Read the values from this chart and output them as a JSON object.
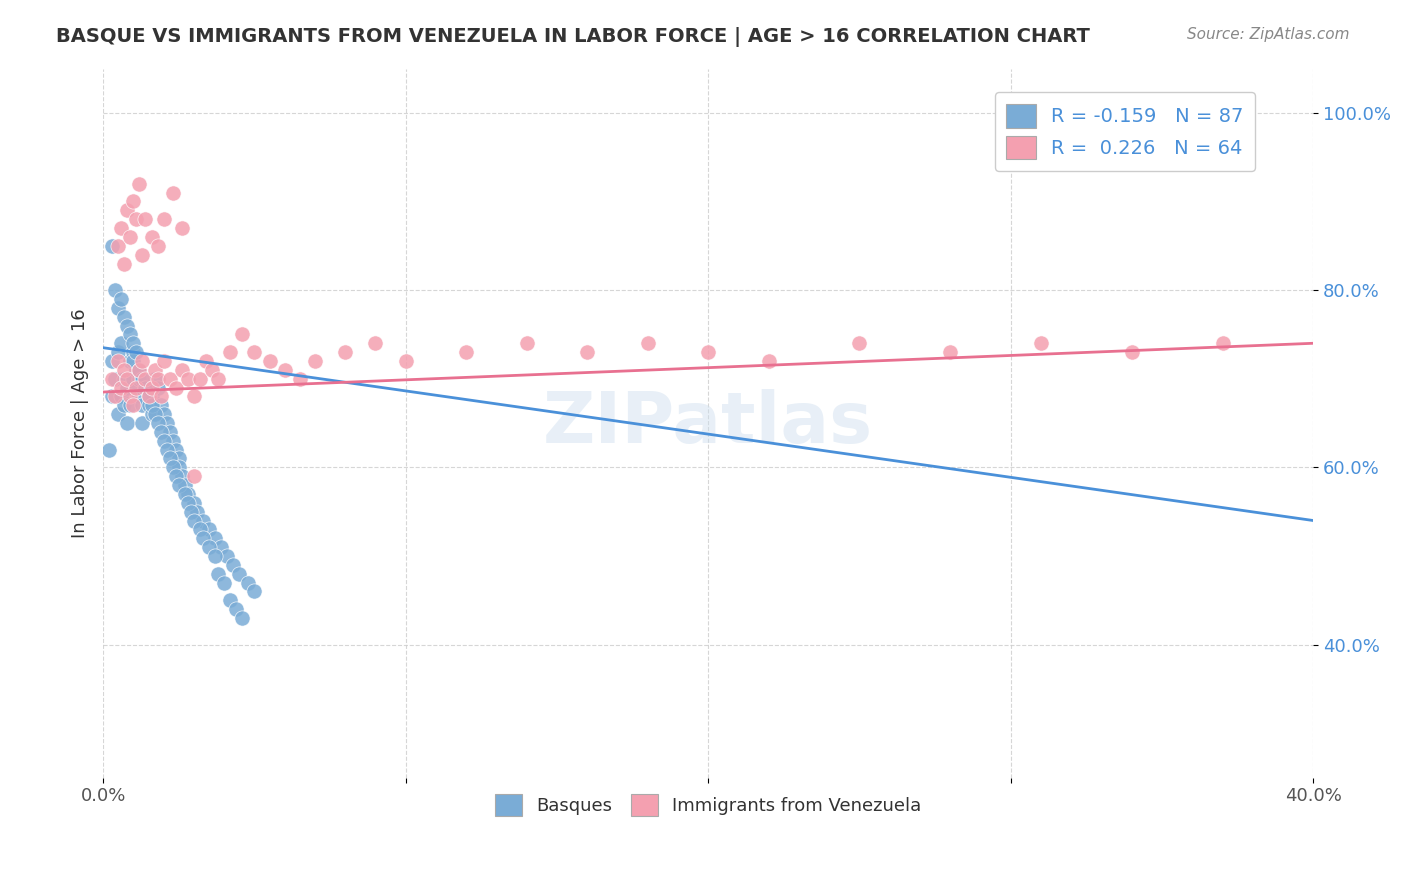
{
  "title": "BASQUE VS IMMIGRANTS FROM VENEZUELA IN LABOR FORCE | AGE > 16 CORRELATION CHART",
  "source": "Source: ZipAtlas.com",
  "ylabel": "In Labor Force | Age > 16",
  "xlim": [
    0.0,
    0.4
  ],
  "ylim": [
    0.25,
    1.05
  ],
  "x_ticks": [
    0.0,
    0.1,
    0.2,
    0.3,
    0.4
  ],
  "x_tick_labels": [
    "0.0%",
    "",
    "",
    "",
    "40.0%"
  ],
  "y_ticks": [
    0.4,
    0.6,
    0.8,
    1.0
  ],
  "y_tick_labels": [
    "40.0%",
    "60.0%",
    "80.0%",
    "100.0%"
  ],
  "legend1_label": "R = -0.159   N = 87",
  "legend2_label": "R =  0.226   N = 64",
  "blue_color": "#7aacd6",
  "pink_color": "#f4a0b0",
  "blue_line_color": "#4a90d9",
  "pink_line_color": "#e87090",
  "watermark": "ZIPatlas",
  "legend_bottom_label1": "Basques",
  "legend_bottom_label2": "Immigrants from Venezuela",
  "basque_x": [
    0.002,
    0.003,
    0.003,
    0.004,
    0.005,
    0.005,
    0.006,
    0.006,
    0.007,
    0.007,
    0.008,
    0.008,
    0.009,
    0.009,
    0.01,
    0.01,
    0.011,
    0.011,
    0.012,
    0.012,
    0.013,
    0.013,
    0.014,
    0.015,
    0.016,
    0.016,
    0.017,
    0.018,
    0.019,
    0.02,
    0.021,
    0.022,
    0.023,
    0.024,
    0.025,
    0.025,
    0.026,
    0.027,
    0.028,
    0.03,
    0.031,
    0.033,
    0.035,
    0.037,
    0.039,
    0.041,
    0.043,
    0.045,
    0.048,
    0.05,
    0.003,
    0.004,
    0.005,
    0.006,
    0.007,
    0.008,
    0.009,
    0.01,
    0.01,
    0.011,
    0.012,
    0.013,
    0.014,
    0.015,
    0.016,
    0.017,
    0.018,
    0.019,
    0.02,
    0.021,
    0.022,
    0.023,
    0.024,
    0.025,
    0.027,
    0.028,
    0.029,
    0.03,
    0.032,
    0.033,
    0.035,
    0.037,
    0.038,
    0.04,
    0.042,
    0.044,
    0.046
  ],
  "basque_y": [
    0.62,
    0.68,
    0.72,
    0.7,
    0.66,
    0.73,
    0.68,
    0.74,
    0.67,
    0.7,
    0.65,
    0.69,
    0.67,
    0.72,
    0.7,
    0.73,
    0.69,
    0.71,
    0.68,
    0.7,
    0.67,
    0.65,
    0.69,
    0.67,
    0.66,
    0.68,
    0.7,
    0.69,
    0.67,
    0.66,
    0.65,
    0.64,
    0.63,
    0.62,
    0.61,
    0.6,
    0.59,
    0.58,
    0.57,
    0.56,
    0.55,
    0.54,
    0.53,
    0.52,
    0.51,
    0.5,
    0.49,
    0.48,
    0.47,
    0.46,
    0.85,
    0.8,
    0.78,
    0.79,
    0.77,
    0.76,
    0.75,
    0.74,
    0.72,
    0.73,
    0.71,
    0.7,
    0.69,
    0.68,
    0.67,
    0.66,
    0.65,
    0.64,
    0.63,
    0.62,
    0.61,
    0.6,
    0.59,
    0.58,
    0.57,
    0.56,
    0.55,
    0.54,
    0.53,
    0.52,
    0.51,
    0.5,
    0.48,
    0.47,
    0.45,
    0.44,
    0.43
  ],
  "venezuela_x": [
    0.003,
    0.004,
    0.005,
    0.006,
    0.007,
    0.008,
    0.009,
    0.01,
    0.011,
    0.012,
    0.013,
    0.014,
    0.015,
    0.016,
    0.017,
    0.018,
    0.019,
    0.02,
    0.022,
    0.024,
    0.026,
    0.028,
    0.03,
    0.032,
    0.034,
    0.036,
    0.038,
    0.042,
    0.046,
    0.05,
    0.055,
    0.06,
    0.065,
    0.07,
    0.08,
    0.09,
    0.1,
    0.12,
    0.14,
    0.16,
    0.18,
    0.2,
    0.22,
    0.25,
    0.28,
    0.31,
    0.34,
    0.37,
    0.005,
    0.006,
    0.007,
    0.008,
    0.009,
    0.01,
    0.011,
    0.012,
    0.013,
    0.014,
    0.016,
    0.018,
    0.02,
    0.023,
    0.026,
    0.03
  ],
  "venezuela_y": [
    0.7,
    0.68,
    0.72,
    0.69,
    0.71,
    0.7,
    0.68,
    0.67,
    0.69,
    0.71,
    0.72,
    0.7,
    0.68,
    0.69,
    0.71,
    0.7,
    0.68,
    0.72,
    0.7,
    0.69,
    0.71,
    0.7,
    0.68,
    0.7,
    0.72,
    0.71,
    0.7,
    0.73,
    0.75,
    0.73,
    0.72,
    0.71,
    0.7,
    0.72,
    0.73,
    0.74,
    0.72,
    0.73,
    0.74,
    0.73,
    0.74,
    0.73,
    0.72,
    0.74,
    0.73,
    0.74,
    0.73,
    0.74,
    0.85,
    0.87,
    0.83,
    0.89,
    0.86,
    0.9,
    0.88,
    0.92,
    0.84,
    0.88,
    0.86,
    0.85,
    0.88,
    0.91,
    0.87,
    0.59
  ],
  "blue_trendline_x": [
    0.0,
    0.4
  ],
  "blue_trendline_y": [
    0.735,
    0.54
  ],
  "pink_trendline_x": [
    0.0,
    0.4
  ],
  "pink_trendline_y": [
    0.685,
    0.74
  ]
}
